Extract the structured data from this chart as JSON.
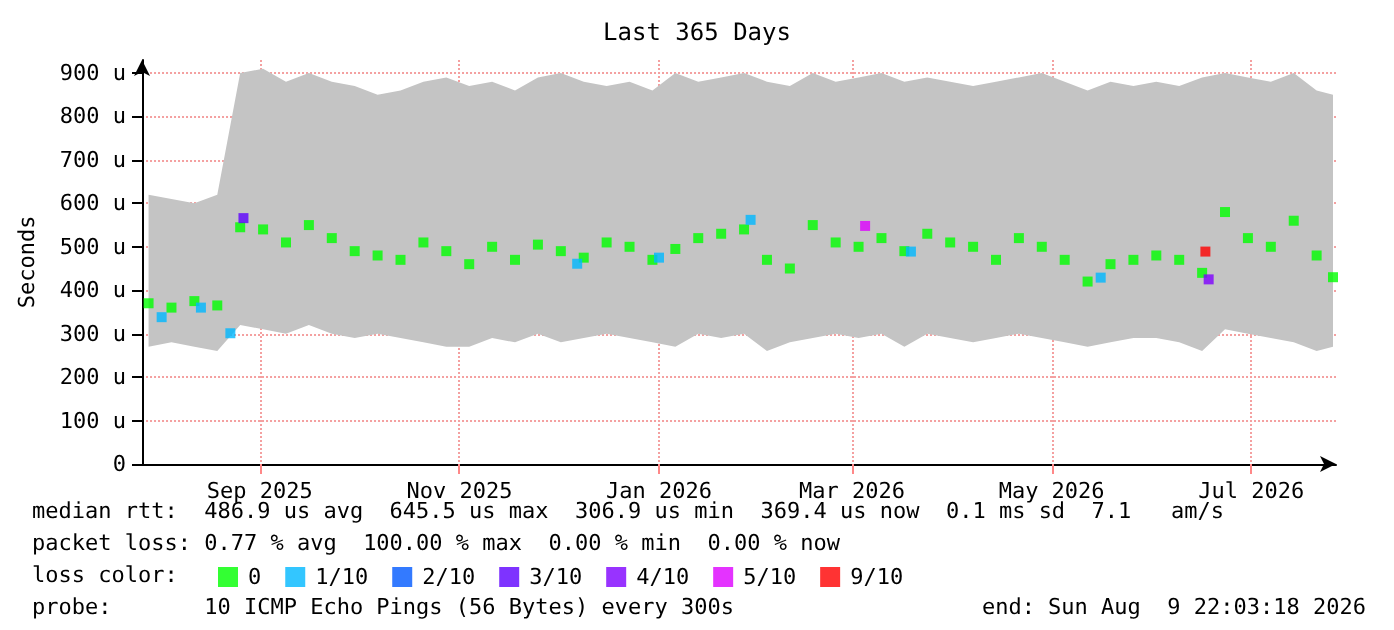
{
  "chart_data": {
    "type": "scatter",
    "title": "Last 365 Days",
    "ylabel": "Seconds",
    "legend_title": "loss color:",
    "legend": "bottom",
    "grid": true,
    "marker": "square",
    "xlim": [
      "2025-08-10",
      "2026-08-09T22:03"
    ],
    "xticks": [
      {
        "value": "2025-09-15",
        "label": "Sep 2025"
      },
      {
        "value": "2025-11-15",
        "label": "Nov 2025"
      },
      {
        "value": "2026-01-15",
        "label": "Jan 2026"
      },
      {
        "value": "2026-03-15",
        "label": "Mar 2026"
      },
      {
        "value": "2026-05-15",
        "label": "May 2026"
      },
      {
        "value": "2026-07-15",
        "label": "Jul 2026"
      }
    ],
    "ylim": [
      0,
      930
    ],
    "yticks": [
      0,
      {
        "value": 100,
        "label": "100 u"
      },
      {
        "value": 200,
        "label": "200 u"
      },
      {
        "value": 300,
        "label": "300 u"
      },
      {
        "value": 400,
        "label": "400 u"
      },
      {
        "value": 500,
        "label": "500 u"
      },
      {
        "value": 600,
        "label": "600 u"
      },
      {
        "value": 700,
        "label": "700 u"
      },
      {
        "value": 800,
        "label": "800 u"
      },
      {
        "value": 900,
        "label": "900 u"
      }
    ],
    "series": [
      {
        "name": "0",
        "color": "#00ff00",
        "x": [
          "2025-08-12",
          "2025-08-19",
          "2025-08-26",
          "2025-09-02",
          "2025-09-09",
          "2025-09-16",
          "2025-09-23",
          "2025-09-30",
          "2025-10-07",
          "2025-10-14",
          "2025-10-21",
          "2025-10-28",
          "2025-11-04",
          "2025-11-11",
          "2025-11-18",
          "2025-11-25",
          "2025-12-02",
          "2025-12-09",
          "2025-12-16",
          "2025-12-23",
          "2025-12-30",
          "2026-01-06",
          "2026-01-13",
          "2026-01-20",
          "2026-01-27",
          "2026-02-03",
          "2026-02-10",
          "2026-02-17",
          "2026-02-24",
          "2026-03-03",
          "2026-03-10",
          "2026-03-17",
          "2026-03-24",
          "2026-03-31",
          "2026-04-07",
          "2026-04-14",
          "2026-04-21",
          "2026-04-28",
          "2026-05-05",
          "2026-05-12",
          "2026-05-19",
          "2026-05-26",
          "2026-06-02",
          "2026-06-09",
          "2026-06-16",
          "2026-06-23",
          "2026-06-30",
          "2026-07-07",
          "2026-07-14",
          "2026-07-21",
          "2026-07-28",
          "2026-08-04",
          "2026-08-09"
        ],
        "values": [
          370,
          360,
          375,
          365,
          545,
          540,
          510,
          550,
          520,
          490,
          480,
          470,
          510,
          490,
          460,
          500,
          470,
          505,
          490,
          475,
          510,
          500,
          470,
          495,
          520,
          530,
          540,
          470,
          450,
          550,
          510,
          500,
          520,
          490,
          530,
          510,
          500,
          470,
          520,
          500,
          470,
          420,
          460,
          470,
          480,
          470,
          440,
          580,
          520,
          500,
          560,
          480,
          430
        ],
        "lower": [
          270,
          280,
          270,
          260,
          320,
          310,
          300,
          320,
          300,
          290,
          300,
          290,
          280,
          270,
          270,
          290,
          280,
          300,
          280,
          290,
          300,
          290,
          280,
          270,
          300,
          290,
          300,
          260,
          280,
          290,
          300,
          290,
          300,
          270,
          300,
          290,
          280,
          290,
          300,
          290,
          280,
          270,
          280,
          290,
          290,
          280,
          260,
          310,
          300,
          290,
          280,
          260,
          270
        ],
        "upper": [
          620,
          610,
          600,
          620,
          900,
          910,
          880,
          900,
          880,
          870,
          850,
          860,
          880,
          890,
          870,
          880,
          860,
          890,
          900,
          880,
          870,
          880,
          860,
          900,
          880,
          890,
          900,
          880,
          870,
          900,
          880,
          890,
          900,
          880,
          890,
          880,
          870,
          880,
          890,
          900,
          880,
          860,
          880,
          870,
          880,
          870,
          890,
          900,
          890,
          880,
          900,
          860,
          850
        ]
      },
      {
        "name": "1/10",
        "color": "#00b8ff",
        "x": [
          "2025-08-16",
          "2025-08-28",
          "2025-09-06",
          "2025-12-21",
          "2026-01-15",
          "2026-02-12",
          "2026-04-02",
          "2026-05-30"
        ],
        "values": [
          338,
          360,
          301,
          461,
          475,
          562,
          489,
          429
        ]
      },
      {
        "name": "2/10",
        "color": "#0059ff"
      },
      {
        "name": "3/10",
        "color": "#5e00ff",
        "x": [
          "2025-09-10"
        ],
        "values": [
          566
        ]
      },
      {
        "name": "4/10",
        "color": "#7e00ff",
        "x": [
          "2026-07-02"
        ],
        "values": [
          425
        ]
      },
      {
        "name": "5/10",
        "color": "#dd00ff",
        "x": [
          "2026-03-19"
        ],
        "values": [
          548
        ]
      },
      {
        "name": "9/10",
        "color": "#ff0000",
        "x": [
          "2026-07-01"
        ],
        "values": [
          489
        ]
      }
    ],
    "annotations": [
      "median rtt:  486.9 us avg  645.5 us max  306.9 us min  369.4 us now  0.1 ms sd  7.1   am/s",
      "packet loss: 0.77 % avg  100.00 % max  0.00 % min  0.00 % now",
      "probe:       10 ICMP Echo Pings (56 Bytes) every 300s",
      "end: Sun Aug  9 22:03:18 2026"
    ]
  }
}
